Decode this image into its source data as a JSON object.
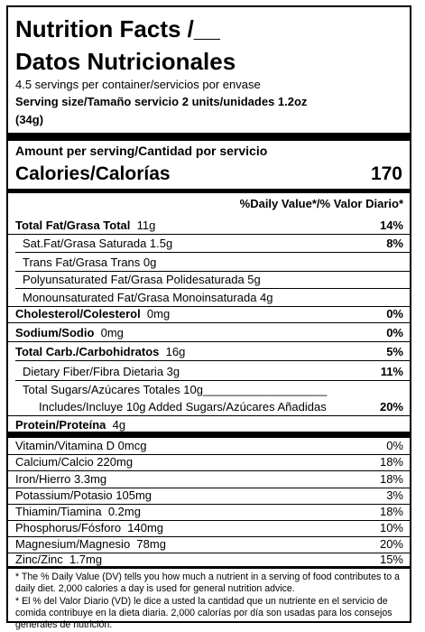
{
  "label": {
    "title_en": "Nutrition Facts /__",
    "title_es": "Datos Nutricionales",
    "servings": "4.5 servings per container/servicios por envase",
    "serving_size_line1": "Serving size/Tamaño servicio 2 units/unidades 1.2oz",
    "serving_size_line2": "(34g)",
    "amount_per_serving": "Amount per serving/Cantidad por servicio",
    "calories_label": "Calories/Calorías",
    "calories_value": "170",
    "dv_header": "%Daily Value*/% Valor Diario*"
  },
  "nutrients": [
    {
      "label": "Total Fat/Grasa Total",
      "amount": "11g",
      "pct": "14%"
    },
    {
      "label": "Sat.Fat/Grasa Saturada 1.5g",
      "amount": "",
      "pct": "8%"
    },
    {
      "label": "Trans Fat/Grasa Trans 0g",
      "amount": "",
      "pct": ""
    },
    {
      "label": "Polyunsaturated Fat/Grasa Polidesaturada 5g",
      "amount": "",
      "pct": ""
    },
    {
      "label": "Monounsaturated Fat/Grasa Monoinsaturada 4g",
      "amount": "",
      "pct": ""
    },
    {
      "label": "Cholesterol/Colesterol",
      "amount": "0mg",
      "pct": "0%"
    },
    {
      "label": "Sodium/Sodio",
      "amount": "0mg",
      "pct": "0%"
    },
    {
      "label": "Total Carb./Carbohidratos",
      "amount": "16g",
      "pct": "5%"
    },
    {
      "label": "Dietary Fiber/Fibra Dietaria 3g",
      "amount": "",
      "pct": "11%"
    },
    {
      "label": "Total Sugars/Azúcares Totales 10g___________________",
      "amount": "",
      "pct": ""
    },
    {
      "label": "Includes/Incluye 10g Added Sugars/Azúcares Añadidas",
      "amount": "",
      "pct": "20%"
    },
    {
      "label": "Protein/Proteína",
      "amount": "4g",
      "pct": ""
    }
  ],
  "vitamins": [
    {
      "label": "Vitamin/Vitamina D 0mcg",
      "pct": "0%"
    },
    {
      "label": "Calcium/Calcio 220mg",
      "pct": "18%"
    },
    {
      "label": "Iron/Hierro 3.3mg",
      "pct": "18%"
    },
    {
      "label": "Potassium/Potasio 105mg",
      "pct": "3%"
    },
    {
      "label": "Thiamin/Tiamina  0.2mg",
      "pct": "18%"
    },
    {
      "label": "Phosphorus/Fósforo  140mg",
      "pct": "10%"
    },
    {
      "label": "Magnesium/Magnesio  78mg",
      "pct": "20%"
    },
    {
      "label": "Zinc/Zinc  1.7mg",
      "pct": "15%"
    }
  ],
  "footnote": {
    "en": "* The % Daily Value (DV) tells you how much a nutrient in a serving of food contributes to a daily diet. 2,000 calories a day is used for general nutrition advice.",
    "es": "* El % del Valor Diario (VD) le dice a usted la cantidad que un nutriente en el servicio de comida contribuye en la dieta diaria. 2,000 calorías por día son usadas para los consejos generales de nutrición."
  }
}
